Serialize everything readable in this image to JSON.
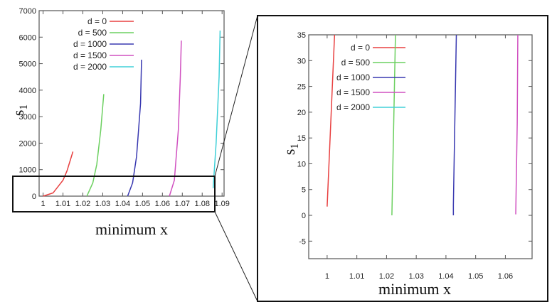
{
  "chart_data": [
    {
      "type": "line",
      "xlabel": "minimum x",
      "ylabel": "s1",
      "xlim": [
        0.998,
        1.091
      ],
      "ylim": [
        0,
        7000
      ],
      "xticks": [
        "1",
        "1.01",
        "1.02",
        "1.03",
        "1.04",
        "1.05",
        "1.06",
        "1.07",
        "1.08",
        "1.09"
      ],
      "yticks": [
        "0",
        "1000",
        "2000",
        "3000",
        "4000",
        "5000",
        "6000",
        "7000"
      ],
      "legend": "top-left",
      "series": [
        {
          "name": "d = 0",
          "color": "#e84040",
          "x": [
            1,
            1.005,
            1.01,
            1.012,
            1.015
          ],
          "y": [
            0,
            120,
            600,
            950,
            1680
          ]
        },
        {
          "name": "d = 500",
          "color": "#6cd060",
          "x": [
            1.022,
            1.025,
            1.027,
            1.029,
            1.0305
          ],
          "y": [
            0,
            500,
            1200,
            2500,
            3850
          ]
        },
        {
          "name": "d = 1000",
          "color": "#3838b0",
          "x": [
            1.0425,
            1.045,
            1.047,
            1.049,
            1.0495
          ],
          "y": [
            0,
            500,
            1500,
            3500,
            5150
          ]
        },
        {
          "name": "d = 1500",
          "color": "#d050c0",
          "x": [
            1.0635,
            1.066,
            1.068,
            1.069,
            1.0695
          ],
          "y": [
            0,
            600,
            2500,
            4500,
            5870
          ]
        },
        {
          "name": "d = 2000",
          "color": "#40d0d8",
          "x": [
            1.0855,
            1.087,
            1.0885,
            1.089
          ],
          "y": [
            300,
            2000,
            4500,
            6250
          ]
        }
      ]
    },
    {
      "type": "line",
      "xlabel": "minimum x",
      "ylabel": "s1",
      "xlim": [
        0.9938,
        1.069
      ],
      "ylim": [
        -8.4,
        35
      ],
      "xticks": [
        "1",
        "1.01",
        "1.02",
        "1.03",
        "1.04",
        "1.05",
        "1.06"
      ],
      "yticks": [
        "-5",
        "0",
        "5",
        "10",
        "15",
        "20",
        "25",
        "30",
        "35"
      ],
      "legend": "top-left",
      "series": [
        {
          "name": "d = 0",
          "color": "#e84040",
          "x": [
            1.0,
            1.0025
          ],
          "y": [
            1.7,
            35
          ]
        },
        {
          "name": "d = 500",
          "color": "#6cd060",
          "x": [
            1.0218,
            1.023
          ],
          "y": [
            0,
            35
          ]
        },
        {
          "name": "d = 1000",
          "color": "#3838b0",
          "x": [
            1.0425,
            1.0425,
            1.0435
          ],
          "y": [
            0,
            2,
            35
          ]
        },
        {
          "name": "d = 1500",
          "color": "#d050c0",
          "x": [
            1.0635,
            1.064,
            1.0642
          ],
          "y": [
            0.2,
            18,
            35
          ]
        },
        {
          "name": "d = 2000",
          "color": "#40d0d8",
          "x": [],
          "y": []
        }
      ]
    }
  ]
}
